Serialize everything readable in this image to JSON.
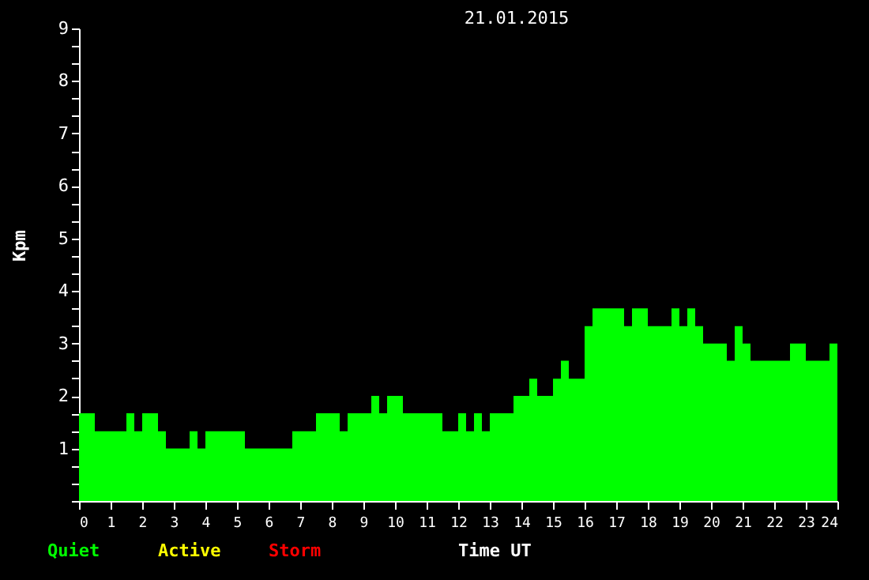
{
  "chart_data": {
    "type": "bar",
    "title": "21.01.2015",
    "xlabel": "Time UT",
    "ylabel": "Kpm",
    "x": [
      0.125,
      0.375,
      0.625,
      0.875,
      1.125,
      1.375,
      1.625,
      1.875,
      2.125,
      2.375,
      2.625,
      2.875,
      3.125,
      3.375,
      3.625,
      3.875,
      4.125,
      4.375,
      4.625,
      4.875,
      5.125,
      5.375,
      5.625,
      5.875,
      6.125,
      6.375,
      6.625,
      6.875,
      7.125,
      7.375,
      7.625,
      7.875,
      8.125,
      8.375,
      8.625,
      8.875,
      9.125,
      9.375,
      9.625,
      9.875,
      10.125,
      10.375,
      10.625,
      10.875,
      11.125,
      11.375,
      11.625,
      11.875,
      12.125,
      12.375,
      12.625,
      12.875,
      13.125,
      13.375,
      13.625,
      13.875,
      14.125,
      14.375,
      14.625,
      14.875,
      15.125,
      15.375,
      15.625,
      15.875,
      16.125,
      16.375,
      16.625,
      16.875,
      17.125,
      17.375,
      17.625,
      17.875,
      18.125,
      18.375,
      18.625,
      18.875,
      19.125,
      19.375,
      19.625,
      19.875,
      20.125,
      20.375,
      20.625,
      20.875,
      21.125,
      21.375,
      21.625,
      21.875,
      22.125,
      22.375,
      22.625,
      22.875,
      23.125,
      23.375,
      23.625,
      23.875
    ],
    "series": [
      {
        "name": "Quiet",
        "color": "#00ff00",
        "values": [
          1.67,
          1.67,
          1.33,
          1.33,
          1.33,
          1.33,
          1.67,
          1.33,
          1.67,
          1.67,
          1.33,
          1.0,
          1.0,
          1.0,
          1.33,
          1.0,
          1.33,
          1.33,
          1.33,
          1.33,
          1.33,
          1.0,
          1.0,
          1.0,
          1.0,
          1.0,
          1.0,
          1.33,
          1.33,
          1.33,
          1.67,
          1.67,
          1.67,
          1.33,
          1.67,
          1.67,
          1.67,
          2.0,
          1.67,
          2.0,
          2.0,
          1.67,
          1.67,
          1.67,
          1.67,
          1.67,
          1.33,
          1.33,
          1.67,
          1.33,
          1.67,
          1.33,
          1.67,
          1.67,
          1.67,
          2.0,
          2.0,
          2.33,
          2.0,
          2.0,
          2.33,
          2.67,
          2.33,
          2.33,
          3.33,
          3.67,
          3.67,
          3.67,
          3.67,
          3.33,
          3.67,
          3.67,
          3.33,
          3.33,
          3.33,
          3.67,
          3.33,
          3.67,
          3.33,
          3.0,
          3.0,
          3.0,
          2.67,
          3.33,
          3.0,
          2.67,
          2.67,
          2.67,
          2.67,
          2.67,
          3.0,
          3.0,
          2.67,
          2.67,
          2.67,
          3.0
        ]
      },
      {
        "name": "Active",
        "color": "#ffff00",
        "values": [
          null,
          null,
          null,
          null,
          null,
          null,
          null,
          null,
          null,
          null,
          null,
          null,
          null,
          null,
          null,
          null,
          null,
          null,
          null,
          null,
          null,
          null,
          null,
          null,
          null,
          null,
          null,
          null,
          null,
          null,
          null,
          null,
          null,
          null,
          null,
          null,
          null,
          null,
          null,
          null,
          null,
          null,
          null,
          null,
          null,
          null,
          null,
          null,
          null,
          null,
          null,
          null,
          null,
          null,
          null,
          null,
          null,
          null,
          null,
          null,
          null,
          null,
          null,
          null,
          null,
          null,
          null,
          null,
          null,
          null,
          null,
          null,
          null,
          null,
          null,
          null,
          null,
          null,
          null,
          null,
          null,
          null,
          null,
          null,
          null,
          null,
          null,
          null,
          null,
          null,
          null,
          null,
          null,
          null,
          null,
          null
        ]
      },
      {
        "name": "Storm",
        "color": "#ff0000",
        "values": [
          null,
          null,
          null,
          null,
          null,
          null,
          null,
          null,
          null,
          null,
          null,
          null,
          null,
          null,
          null,
          null,
          null,
          null,
          null,
          null,
          null,
          null,
          null,
          null,
          null,
          null,
          null,
          null,
          null,
          null,
          null,
          null,
          null,
          null,
          null,
          null,
          null,
          null,
          null,
          null,
          null,
          null,
          null,
          null,
          null,
          null,
          null,
          null,
          null,
          null,
          null,
          null,
          null,
          null,
          null,
          null,
          null,
          null,
          null,
          null,
          null,
          null,
          null,
          null,
          null,
          null,
          null,
          null,
          null,
          null,
          null,
          null,
          null,
          null,
          null,
          null,
          null,
          null,
          null,
          null,
          null,
          null,
          null,
          null,
          null,
          null,
          null,
          null,
          null,
          null,
          null,
          null,
          null,
          null,
          null,
          null
        ]
      }
    ],
    "xlim": [
      0,
      24
    ],
    "xticks": [
      0,
      1,
      2,
      3,
      4,
      5,
      6,
      7,
      8,
      9,
      10,
      11,
      12,
      13,
      14,
      15,
      16,
      17,
      18,
      19,
      20,
      21,
      22,
      23,
      24
    ],
    "ylim": [
      0,
      9
    ],
    "yticks": [
      {
        "value": 0,
        "label": null
      },
      {
        "value": 0.333,
        "label": null
      },
      {
        "value": 0.667,
        "label": null
      },
      1,
      {
        "value": 1.333,
        "label": null
      },
      {
        "value": 1.667,
        "label": null
      },
      2,
      {
        "value": 2.333,
        "label": null
      },
      {
        "value": 2.667,
        "label": null
      },
      3,
      {
        "value": 3.333,
        "label": null
      },
      {
        "value": 3.667,
        "label": null
      },
      4,
      {
        "value": 4.333,
        "label": null
      },
      {
        "value": 4.667,
        "label": null
      },
      5,
      {
        "value": 5.333,
        "label": null
      },
      {
        "value": 5.667,
        "label": null
      },
      6,
      {
        "value": 6.333,
        "label": null
      },
      {
        "value": 6.667,
        "label": null
      },
      7,
      {
        "value": 7.333,
        "label": null
      },
      {
        "value": 7.667,
        "label": null
      },
      8,
      {
        "value": 8.333,
        "label": null
      },
      {
        "value": 8.667,
        "label": null
      },
      9
    ],
    "grid": false,
    "legend": "bottom left"
  }
}
